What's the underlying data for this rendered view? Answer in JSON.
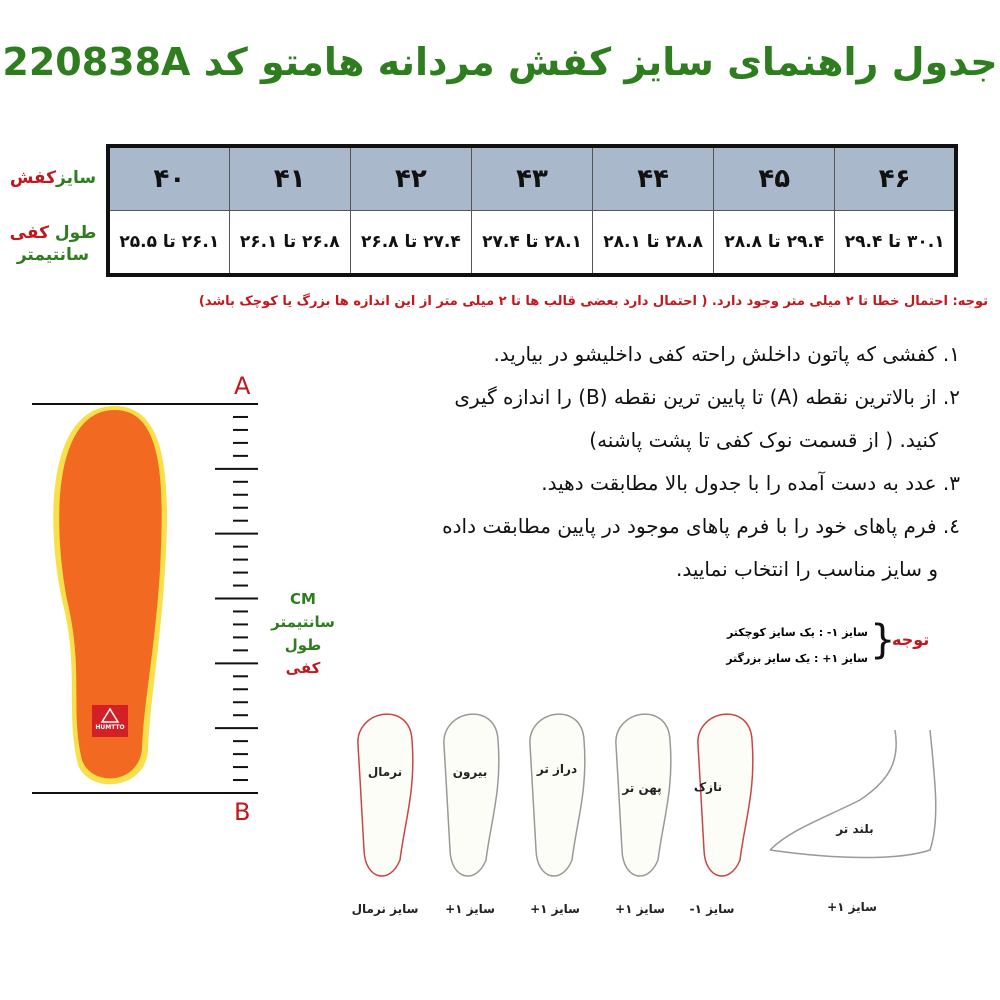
{
  "title": "جدول راهنمای سایز کفش مردانه هامتو کد 220838A",
  "table": {
    "row_labels": {
      "size_part1": "سایز",
      "size_part2": "کفش",
      "length_part1": "طول",
      "length_part2": "کفی",
      "length_part3": "سانتیمتر"
    },
    "sizes": [
      "۴۶",
      "۴۵",
      "۴۴",
      "۴۳",
      "۴۲",
      "۴۱",
      "۴۰"
    ],
    "lengths": [
      "۳۰.۱ تا ۲۹.۴",
      "۲۹.۴ تا ۲۸.۸",
      "۲۸.۸ تا ۲۸.۱",
      "۲۸.۱ تا ۲۷.۴",
      "۲۷.۴ تا ۲۶.۸",
      "۲۶.۸ تا ۲۶.۱",
      "۲۶.۱ تا ۲۵.۵"
    ]
  },
  "note": "توجه: احتمال خطا تا ۲ میلی متر وجود دارد. ( احتمال دارد بعضی قالب ها تا ۲ میلی متر از این اندازه ها بزرگ یا کوچک باشد)",
  "instructions": [
    "۱. کفشی که پاتون داخلش راحته کفی داخلیشو در بیارید.",
    "۲. از بالاترین نقطه (A) تا پایین ترین نقطه (B) را اندازه گیری",
    "کنید. ( از قسمت نوک کفی تا پشت پاشنه)",
    "۳. عدد به دست آمده را با جدول بالا مطابقت دهید.",
    "٤. فرم پاهای خود را با فرم پاهای موجود در پایین مطابقت داده",
    "و سایز مناسب را انتخاب نمایید."
  ],
  "insole": {
    "point_a": "A",
    "point_b": "B",
    "brand": "HUMTTO",
    "unit": "CM",
    "unit_fa": "سانتیمتر",
    "label_part1": "طول",
    "label_part2": "کفی"
  },
  "attention": {
    "title": "توجه",
    "line1": "سایز ۱- :  یک سایز کوچکتر",
    "line2": "سایز ۱+ :  یک سایز بزرگتر"
  },
  "feet": [
    {
      "type": "نرمال",
      "size": "سایز نرمال"
    },
    {
      "type": "بیرون",
      "size": "سایز ۱+"
    },
    {
      "type": "دراز تر",
      "size": "سایز ۱+"
    },
    {
      "type": "پهن تر",
      "size": "سایز ۱+"
    },
    {
      "type": "نازک",
      "size": "سایز ۱-"
    },
    {
      "type": "بلند تر",
      "size": "سایز ۱+"
    }
  ],
  "colors": {
    "title": "#2e7d1e",
    "accent_red": "#c4161c",
    "table_header": "#aab8cc",
    "insole": "#f26a21"
  }
}
